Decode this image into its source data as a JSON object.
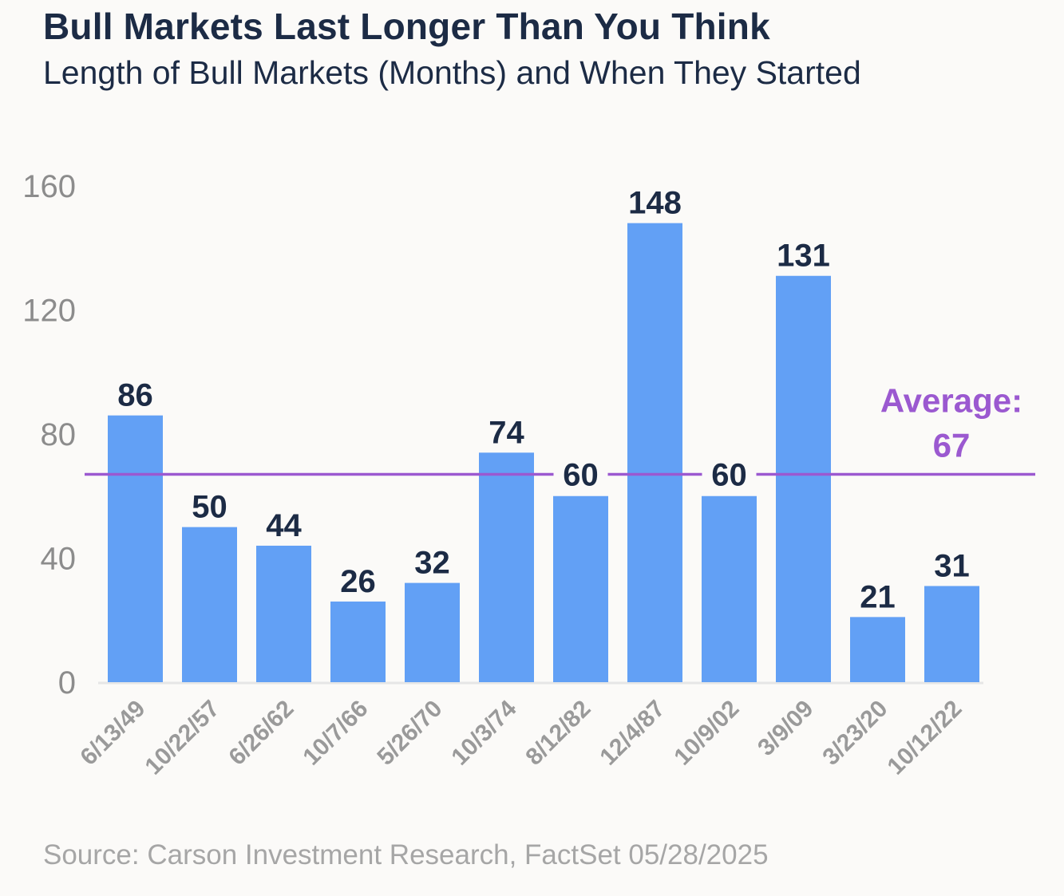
{
  "header": {
    "title": "Bull Markets Last Longer Than You Think",
    "subtitle": "Length of Bull Markets (Months) and When They Started"
  },
  "footer": {
    "source": "Source: Carson Investment Research, FactSet 05/28/2025"
  },
  "colors": {
    "bar": "#62a0f5",
    "average_line": "#9b59d0",
    "text_dark": "#1c2b45",
    "tick_gray": "#8c8c8c"
  },
  "chart_data": {
    "type": "bar",
    "title": "Bull Markets Last Longer Than You Think",
    "subtitle": "Length of Bull Markets (Months) and When They Started",
    "xlabel": "",
    "ylabel": "",
    "categories": [
      "6/13/49",
      "10/22/57",
      "6/26/62",
      "10/7/66",
      "5/26/70",
      "10/3/74",
      "8/12/82",
      "12/4/87",
      "10/9/02",
      "3/9/09",
      "3/23/20",
      "10/12/22"
    ],
    "values": [
      86,
      50,
      44,
      26,
      32,
      74,
      60,
      148,
      60,
      131,
      21,
      31
    ],
    "ylim": [
      0,
      160
    ],
    "yticks": [
      0,
      40,
      80,
      120,
      160
    ],
    "ytick_labels": [
      "0",
      "40",
      "80",
      "120",
      "160"
    ],
    "grid": false,
    "legend": "none",
    "reference_line": {
      "value": 67,
      "label_line1": "Average:",
      "label_line2": "67"
    }
  }
}
